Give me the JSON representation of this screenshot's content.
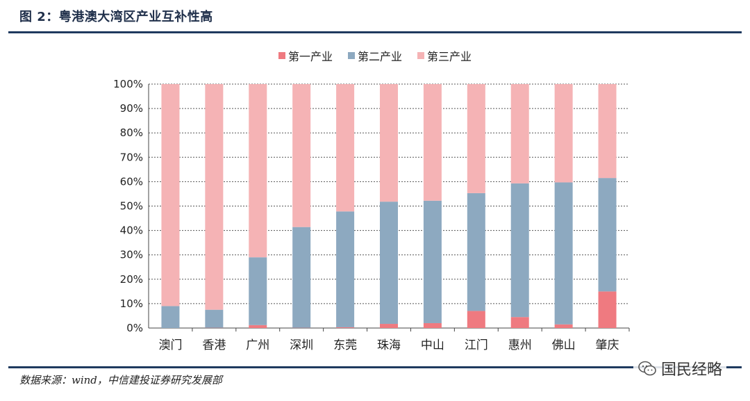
{
  "header": {
    "title": "图 2：粤港澳大湾区产业互补性高"
  },
  "source_note": "数据来源：wind，中信建投证券研究发展部",
  "watermark": {
    "text": "国民经略",
    "icon": "wechat-icon"
  },
  "chart_data": {
    "type": "bar",
    "stacked": true,
    "categories": [
      "澳门",
      "香港",
      "广州",
      "深圳",
      "东莞",
      "珠海",
      "中山",
      "江门",
      "惠州",
      "佛山",
      "肇庆"
    ],
    "series": [
      {
        "name": "第一产业",
        "color": "#ef7a80",
        "values": [
          0,
          0.1,
          1.2,
          0.1,
          0.3,
          1.7,
          2.0,
          7.0,
          4.5,
          1.5,
          15.0
        ]
      },
      {
        "name": "第二产业",
        "color": "#8da9c0",
        "values": [
          9.0,
          7.4,
          27.8,
          41.3,
          47.5,
          50.1,
          50.2,
          48.3,
          54.8,
          58.2,
          46.5
        ]
      },
      {
        "name": "第三产业",
        "color": "#f5b3b5",
        "values": [
          91.0,
          92.5,
          71.0,
          58.6,
          52.2,
          48.2,
          47.8,
          44.7,
          40.7,
          40.3,
          38.5
        ]
      }
    ],
    "ylim": [
      0,
      100
    ],
    "yticks": [
      "0%",
      "10%",
      "20%",
      "30%",
      "40%",
      "50%",
      "60%",
      "70%",
      "80%",
      "90%",
      "100%"
    ],
    "grid": true,
    "legend_position": "top"
  }
}
